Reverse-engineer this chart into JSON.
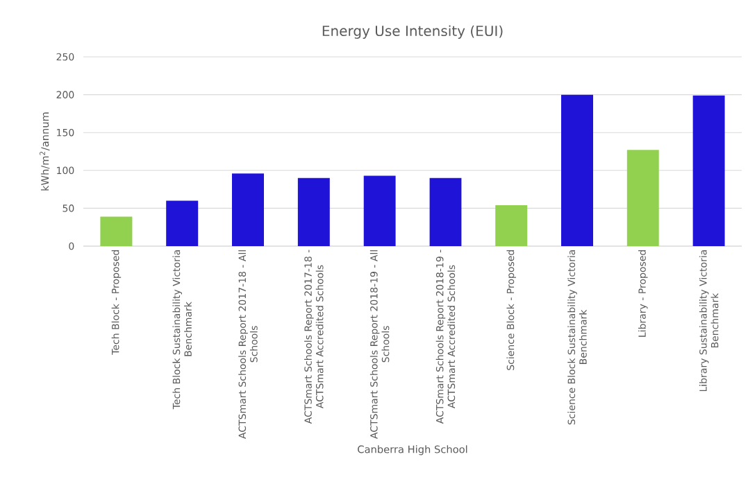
{
  "chart_data": {
    "type": "bar",
    "title": "Energy Use Intensity (EUI)",
    "xlabel": "Canberra High School",
    "ylabel": "kWh/m$^{2}$/annum",
    "categories": [
      "Tech Block - Proposed",
      "Tech Block Sustainability Victoria Benchmark",
      "ACTSmart Schools Report 2017-18 - All Schools",
      "ACTSmart Schools Report 2017-18 - ACTSmart Accredited Schools",
      "ACTSmart Schools Report 2018-19 - All Schools",
      "ACTSmart Schools Report 2018-19 - ACTSmart Accredited Schools",
      "Science Block - Proposed",
      "Science Block Sustainability Victoria Benchmark",
      "Library - Proposed",
      "Library Sustainability Victoria Benchmark"
    ],
    "values": [
      39,
      60,
      96,
      90,
      93,
      90,
      54,
      200,
      127,
      199
    ],
    "colors": [
      "#92d050",
      "#2013d8",
      "#2013d8",
      "#2013d8",
      "#2013d8",
      "#2013d8",
      "#92d050",
      "#2013d8",
      "#92d050",
      "#2013d8"
    ],
    "ylim": [
      0,
      250
    ],
    "yticks": [
      0,
      50,
      100,
      150,
      200,
      250
    ],
    "grid": "y"
  }
}
